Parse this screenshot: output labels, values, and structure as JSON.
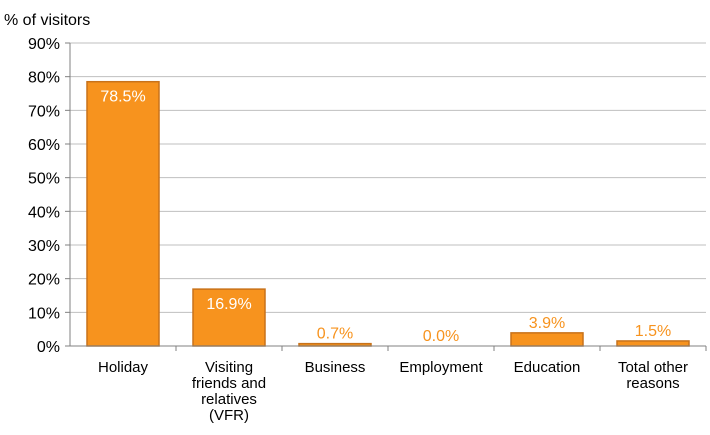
{
  "chart_data": {
    "type": "bar",
    "ylabel": "% of visitors",
    "xlabel": "",
    "title": "",
    "ylim": [
      0,
      90
    ],
    "yticks": [
      "0%",
      "10%",
      "20%",
      "30%",
      "40%",
      "50%",
      "60%",
      "70%",
      "80%",
      "90%"
    ],
    "ytick_values": [
      0,
      10,
      20,
      30,
      40,
      50,
      60,
      70,
      80,
      90
    ],
    "categories": [
      [
        "Holiday"
      ],
      [
        "Visiting",
        "friends and",
        "relatives",
        "(VFR)"
      ],
      [
        "Business"
      ],
      [
        "Employment"
      ],
      [
        "Education"
      ],
      [
        "Total other",
        "reasons"
      ]
    ],
    "values": [
      78.5,
      16.9,
      0.7,
      0.0,
      3.9,
      1.5
    ],
    "data_labels": [
      "78.5%",
      "16.9%",
      "0.7%",
      "0.0%",
      "3.9%",
      "1.5%"
    ],
    "grid": true,
    "legend": "none",
    "colors": {
      "bar_fill": "#F7931E",
      "bar_edge": "#C8721A",
      "label_on_bar": "#ffffff",
      "label_outside": "#F7931E",
      "grid": "#BFBFBF",
      "axis": "#808080"
    }
  }
}
